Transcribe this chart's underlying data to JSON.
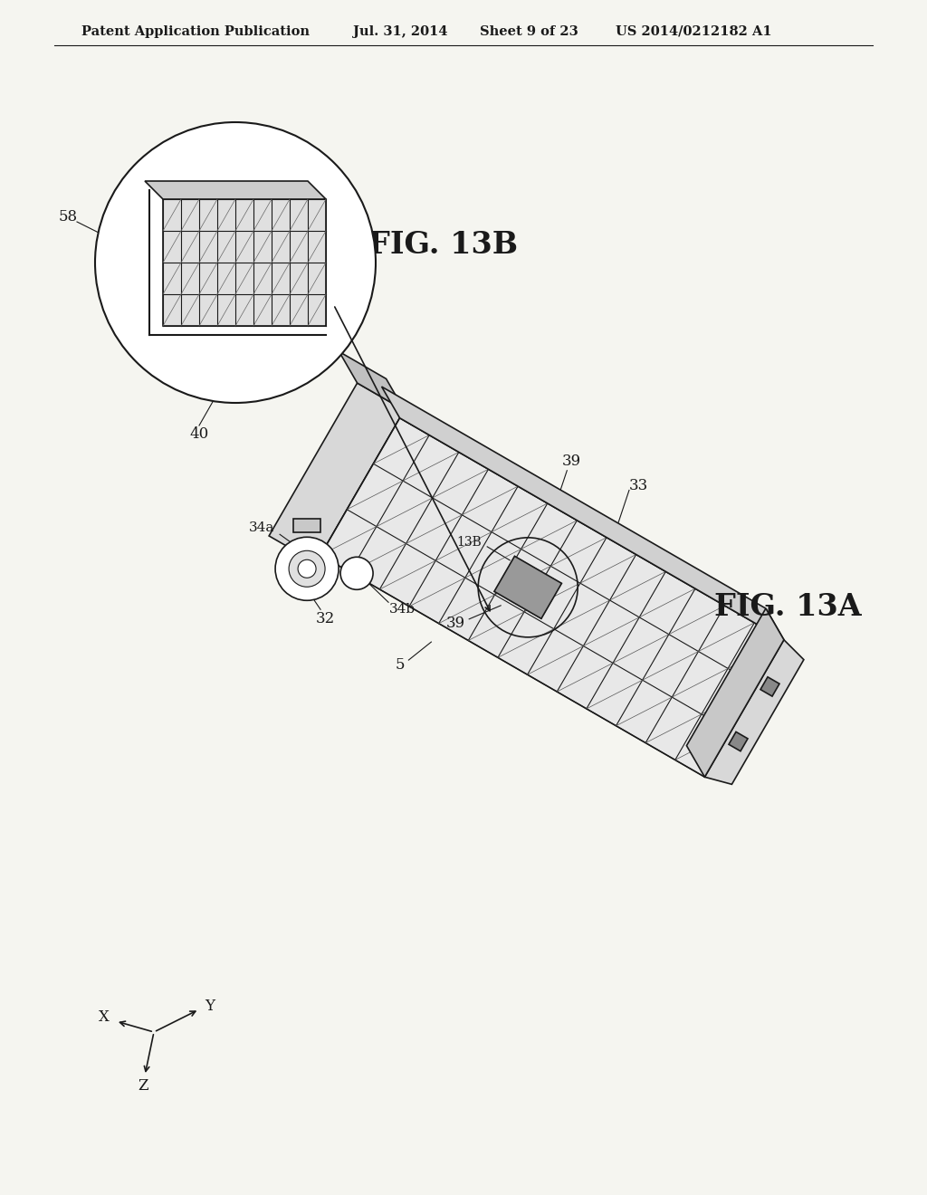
{
  "background_color": "#f5f5f0",
  "header_text": "Patent Application Publication",
  "header_date": "Jul. 31, 2014",
  "header_sheet": "Sheet 9 of 23",
  "header_patent": "US 2014/0212182 A1",
  "fig_label_13a": "FIG. 13A",
  "fig_label_13b": "FIG. 13B",
  "labels": {
    "39_top": "39",
    "58": "58",
    "40": "40",
    "13B": "13B",
    "33": "33",
    "39_mid": "39",
    "5": "5",
    "34a": "34a",
    "32": "32",
    "34b": "34b",
    "X": "X",
    "Y": "Y",
    "Z": "Z"
  },
  "line_color": "#1a1a1a",
  "text_color": "#1a1a1a"
}
